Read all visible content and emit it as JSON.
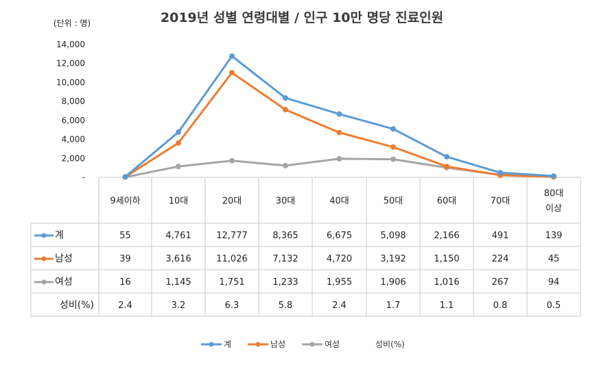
{
  "chart_data": {
    "type": "line",
    "title": "2019년 성별 연령대별 / 인구 10만 명당 진료인원",
    "unit_label": "(단위 : 명)",
    "categories": [
      "9세이하",
      "10대",
      "20대",
      "30대",
      "40대",
      "50대",
      "60대",
      "70대",
      "80대 이상"
    ],
    "category_lines": [
      [
        "9세이하"
      ],
      [
        "10대"
      ],
      [
        "20대"
      ],
      [
        "30대"
      ],
      [
        "40대"
      ],
      [
        "50대"
      ],
      [
        "60대"
      ],
      [
        "70대"
      ],
      [
        "80대",
        "이상"
      ]
    ],
    "ylim": [
      0,
      14000
    ],
    "yticks": [
      0,
      2000,
      4000,
      6000,
      8000,
      10000,
      12000,
      14000
    ],
    "ytick_labels": [
      "-",
      "2,000",
      "4,000",
      "6,000",
      "8,000",
      "10,000",
      "12,000",
      "14,000"
    ],
    "series": [
      {
        "name": "계",
        "color": "#5b9bd5",
        "values": [
          55,
          4761,
          12777,
          8365,
          6675,
          5098,
          2166,
          491,
          139
        ],
        "labels": [
          "55",
          "4,761",
          "12,777",
          "8,365",
          "6,675",
          "5,098",
          "2,166",
          "491",
          "139"
        ]
      },
      {
        "name": "남성",
        "color": "#ed7d31",
        "values": [
          39,
          3616,
          11026,
          7132,
          4720,
          3192,
          1150,
          224,
          45
        ],
        "labels": [
          "39",
          "3,616",
          "11,026",
          "7,132",
          "4,720",
          "3,192",
          "1,150",
          "224",
          "45"
        ]
      },
      {
        "name": "여성",
        "color": "#a5a5a5",
        "values": [
          16,
          1145,
          1751,
          1233,
          1955,
          1906,
          1016,
          267,
          94
        ],
        "labels": [
          "16",
          "1,145",
          "1,751",
          "1,233",
          "1,955",
          "1,906",
          "1,016",
          "267",
          "94"
        ]
      }
    ],
    "extra_row": {
      "name": "성비(%)",
      "labels": [
        "2.4",
        "3.2",
        "6.3",
        "5.8",
        "2.4",
        "1.7",
        "1.1",
        "0.8",
        "0.5"
      ]
    },
    "legend": [
      "계",
      "남성",
      "여성",
      "성비(%)"
    ],
    "legend_position": "bottom"
  }
}
